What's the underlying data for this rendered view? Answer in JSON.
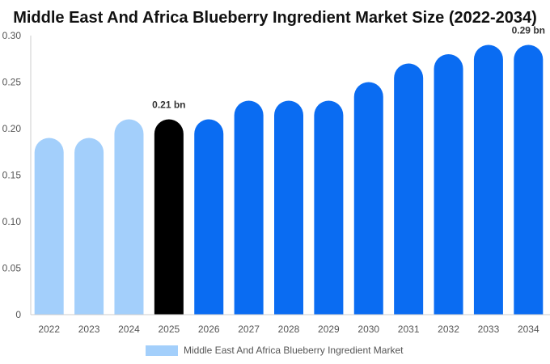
{
  "chart_data": {
    "type": "bar",
    "title": "Middle East And Africa Blueberry Ingredient Market Size (2022-2034)",
    "xlabel": "",
    "ylabel": "",
    "ylim": [
      0,
      0.3
    ],
    "yticks": [
      0,
      0.05,
      0.1,
      0.15,
      0.2,
      0.25,
      0.3
    ],
    "ytick_labels": [
      "0",
      "0.05",
      "0.10",
      "0.15",
      "0.20",
      "0.25",
      "0.30"
    ],
    "categories": [
      "2022",
      "2023",
      "2024",
      "2025",
      "2026",
      "2027",
      "2028",
      "2029",
      "2030",
      "2031",
      "2032",
      "2033",
      "2034"
    ],
    "series": [
      {
        "name": "Middle East And Africa Blueberry Ingredient Market",
        "values": [
          0.19,
          0.19,
          0.21,
          0.21,
          0.21,
          0.23,
          0.23,
          0.23,
          0.25,
          0.27,
          0.28,
          0.29,
          0.29
        ]
      }
    ],
    "bar_colors": [
      "#a3cffb",
      "#a3cffb",
      "#a3cffb",
      "#000000",
      "#0a6cf2",
      "#0a6cf2",
      "#0a6cf2",
      "#0a6cf2",
      "#0a6cf2",
      "#0a6cf2",
      "#0a6cf2",
      "#0a6cf2",
      "#0a6cf2"
    ],
    "legend_color": "#a3cffb",
    "annotations": [
      {
        "category": "2025",
        "text": "0.21 bn"
      },
      {
        "category": "2034",
        "text": "0.29 bn"
      }
    ],
    "legend": {
      "position": "bottom",
      "entries": [
        "Middle East And Africa Blueberry Ingredient Market"
      ]
    },
    "grid": false
  }
}
